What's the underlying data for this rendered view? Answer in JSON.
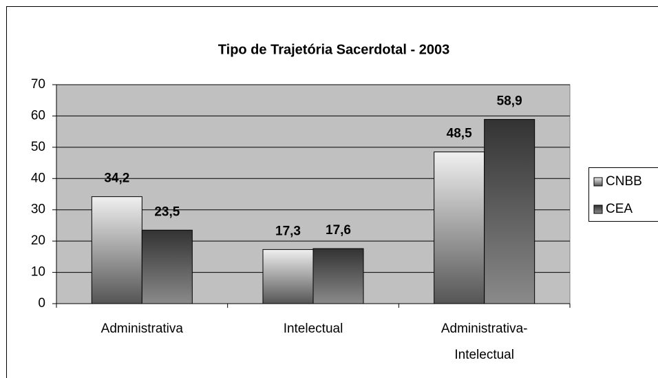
{
  "chart_data": {
    "type": "bar",
    "title": "Tipo de Trajetória Sacerdotal - 2003",
    "categories": [
      "Administrativa",
      "Intelectual",
      "Administrativa-Intelectual"
    ],
    "series": [
      {
        "name": "CNBB",
        "values": [
          34.2,
          17.3,
          48.5
        ],
        "value_labels": [
          "34,2",
          "17,3",
          "48,5"
        ]
      },
      {
        "name": "CEA",
        "values": [
          23.5,
          17.6,
          58.9
        ],
        "value_labels": [
          "23,5",
          "17,6",
          "58,9"
        ]
      }
    ],
    "ylim": [
      0,
      70
    ],
    "yticks": [
      0,
      10,
      20,
      30,
      40,
      50,
      60,
      70
    ],
    "grid": true,
    "legend": "right"
  }
}
